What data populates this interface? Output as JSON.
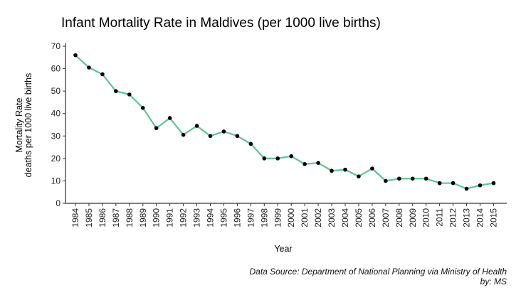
{
  "chart_data": {
    "type": "line",
    "title": "Infant Mortality Rate in Maldives (per 1000 live births)",
    "xlabel": "Year",
    "ylabel_lines": [
      "Mortality Rate",
      "deaths per 1000 live births"
    ],
    "ylim": [
      0,
      70
    ],
    "yticks": [
      0,
      10,
      20,
      30,
      40,
      50,
      60,
      70
    ],
    "categories": [
      "1984",
      "1985",
      "1986",
      "1987",
      "1988",
      "1989",
      "1990",
      "1991",
      "1992",
      "1993",
      "1994",
      "1995",
      "1996",
      "1997",
      "1998",
      "1999",
      "2000",
      "2001",
      "2002",
      "2003",
      "2004",
      "2005",
      "2006",
      "2007",
      "2008",
      "2009",
      "2010",
      "2011",
      "2012",
      "2013",
      "2014",
      "2015"
    ],
    "series": [
      {
        "name": "Infant Mortality Rate",
        "values": [
          66,
          60.5,
          57.5,
          50,
          48.5,
          42.5,
          33.5,
          38,
          30.5,
          34.5,
          30,
          32,
          30,
          26.5,
          20,
          20,
          21,
          17.5,
          18,
          14.5,
          15,
          12,
          15.5,
          10,
          11,
          11,
          11,
          9,
          9,
          6.5,
          8,
          9
        ],
        "line_color": "#5cc496",
        "marker_color": "#000000"
      }
    ],
    "grid": false,
    "caption_lines": [
      "Data Source: Department of National Planning via Ministry of Health",
      "by: MS"
    ]
  }
}
